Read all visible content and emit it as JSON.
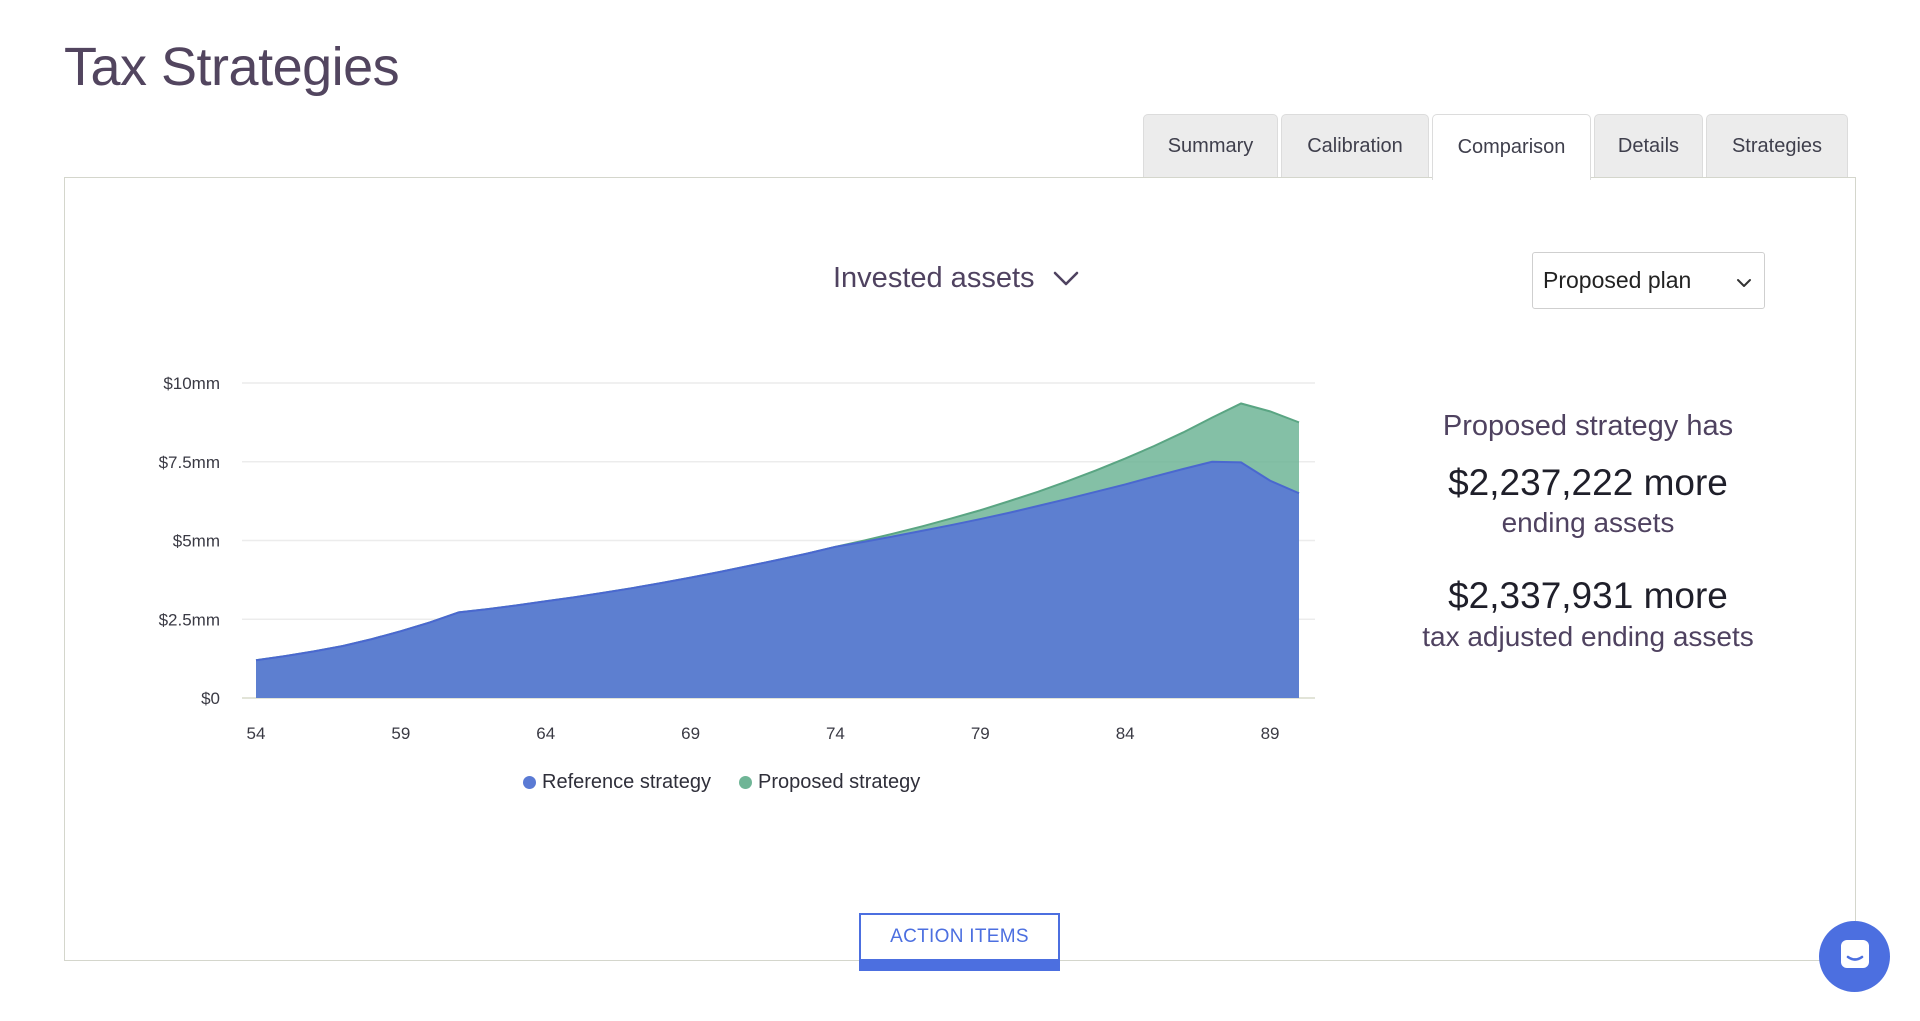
{
  "page": {
    "title": "Tax Strategies"
  },
  "tabs": [
    {
      "label": "Summary",
      "active": false
    },
    {
      "label": "Calibration",
      "active": false
    },
    {
      "label": "Comparison",
      "active": true
    },
    {
      "label": "Details",
      "active": false
    },
    {
      "label": "Strategies",
      "active": false
    }
  ],
  "controls": {
    "metric_label": "Invested assets",
    "plan_select_value": "Proposed plan"
  },
  "summary": {
    "heading": "Proposed strategy has",
    "ending_amount": "$2,237,222 more",
    "ending_label": "ending assets",
    "tax_amount": "$2,337,931 more",
    "tax_label": "tax adjusted ending assets"
  },
  "action_button_label": "ACTION ITEMS",
  "colors": {
    "reference": "#5a7ad4",
    "proposed": "#6fb596",
    "accent": "#4c6fe0",
    "title": "#52455f"
  },
  "icons": {
    "metric_dropdown": "chevron-down-icon",
    "plan_dropdown": "chevron-down-icon",
    "chat": "chat-icon"
  },
  "chart_data": {
    "type": "area",
    "x": [
      54,
      55,
      56,
      57,
      58,
      59,
      60,
      61,
      62,
      63,
      64,
      65,
      66,
      67,
      68,
      69,
      70,
      71,
      72,
      73,
      74,
      75,
      76,
      77,
      78,
      79,
      80,
      81,
      82,
      83,
      84,
      85,
      86,
      87,
      88,
      89,
      90
    ],
    "series": [
      {
        "name": "Reference strategy",
        "values": [
          1.2,
          1.33,
          1.48,
          1.65,
          1.87,
          2.12,
          2.4,
          2.72,
          2.82,
          2.94,
          3.07,
          3.2,
          3.34,
          3.49,
          3.65,
          3.82,
          4.0,
          4.19,
          4.38,
          4.58,
          4.8,
          4.96,
          5.13,
          5.31,
          5.49,
          5.68,
          5.88,
          6.1,
          6.32,
          6.55,
          6.78,
          7.03,
          7.27,
          7.5,
          7.48,
          6.9,
          6.5
        ]
      },
      {
        "name": "Proposed strategy",
        "values": [
          1.2,
          1.33,
          1.48,
          1.65,
          1.87,
          2.12,
          2.4,
          2.72,
          2.82,
          2.94,
          3.07,
          3.2,
          3.34,
          3.49,
          3.65,
          3.82,
          4.0,
          4.19,
          4.38,
          4.58,
          4.8,
          5.0,
          5.22,
          5.45,
          5.7,
          5.96,
          6.25,
          6.55,
          6.88,
          7.23,
          7.6,
          8.0,
          8.43,
          8.9,
          9.35,
          9.1,
          8.75
        ]
      }
    ],
    "y_tick_labels": [
      "$0",
      "$2.5mm",
      "$5mm",
      "$7.5mm",
      "$10mm"
    ],
    "y_ticks": [
      0,
      2.5,
      5,
      7.5,
      10
    ],
    "x_ticks": [
      54,
      59,
      64,
      69,
      74,
      79,
      84,
      89
    ],
    "ylim": [
      0,
      10
    ],
    "xlim": [
      54,
      90
    ],
    "grid": true,
    "legend": "bottom"
  }
}
